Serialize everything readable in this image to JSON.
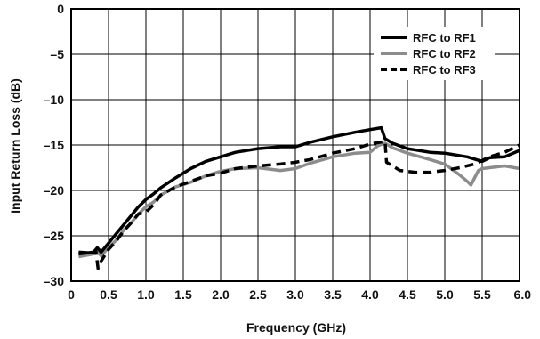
{
  "chart_data": {
    "type": "line",
    "xlabel": "Frequency (GHz)",
    "ylabel": "Input Return Loss (dB)",
    "xlim": [
      0,
      6.0
    ],
    "ylim": [
      -30,
      0
    ],
    "xticks": [
      "0",
      "0.5",
      "1.0",
      "1.5",
      "2.0",
      "2.5",
      "3.0",
      "3.5",
      "4.0",
      "4.5",
      "5.0",
      "5.5",
      "6.0"
    ],
    "yticks": [
      "0",
      "–5",
      "–10",
      "–15",
      "–20",
      "–25",
      "–30"
    ],
    "grid": true,
    "legend_position": "top-right",
    "series": [
      {
        "name": "RFC to RF1",
        "color": "#000000",
        "style": "solid",
        "x": [
          0.1,
          0.3,
          0.35,
          0.4,
          0.5,
          0.6,
          0.7,
          0.8,
          0.9,
          1.0,
          1.1,
          1.2,
          1.4,
          1.6,
          1.8,
          2.0,
          2.2,
          2.5,
          2.8,
          3.0,
          3.2,
          3.5,
          3.8,
          4.0,
          4.15,
          4.2,
          4.3,
          4.5,
          4.8,
          5.0,
          5.3,
          5.5,
          5.6,
          5.8,
          6.0
        ],
        "y": [
          -27.0,
          -26.8,
          -26.3,
          -26.8,
          -25.8,
          -24.8,
          -23.8,
          -22.8,
          -21.8,
          -21.0,
          -20.4,
          -19.7,
          -18.6,
          -17.6,
          -16.8,
          -16.3,
          -15.8,
          -15.4,
          -15.2,
          -15.2,
          -14.7,
          -14.1,
          -13.6,
          -13.3,
          -13.1,
          -14.3,
          -14.8,
          -15.4,
          -15.8,
          -15.9,
          -16.3,
          -16.8,
          -16.4,
          -16.3,
          -15.6
        ]
      },
      {
        "name": "RFC to RF2",
        "color": "#8c8c8c",
        "style": "solid",
        "x": [
          0.1,
          0.3,
          0.35,
          0.4,
          0.5,
          0.6,
          0.7,
          0.8,
          0.9,
          1.0,
          1.1,
          1.2,
          1.4,
          1.6,
          1.8,
          2.0,
          2.2,
          2.5,
          2.8,
          3.0,
          3.2,
          3.5,
          3.8,
          4.0,
          4.1,
          4.2,
          4.3,
          4.5,
          4.8,
          5.0,
          5.2,
          5.3,
          5.35,
          5.4,
          5.45,
          5.5,
          5.8,
          6.0
        ],
        "y": [
          -27.3,
          -27.0,
          -26.8,
          -27.2,
          -26.3,
          -25.5,
          -24.4,
          -23.6,
          -22.6,
          -21.8,
          -21.3,
          -20.5,
          -19.6,
          -19.1,
          -18.4,
          -17.9,
          -17.6,
          -17.5,
          -17.8,
          -17.6,
          -17.0,
          -16.3,
          -15.9,
          -15.8,
          -15.1,
          -14.8,
          -15.3,
          -15.9,
          -16.6,
          -17.1,
          -18.3,
          -19.0,
          -19.4,
          -18.6,
          -17.8,
          -17.6,
          -17.3,
          -17.6
        ]
      },
      {
        "name": "RFC to RF3",
        "color": "#000000",
        "style": "dashed",
        "x": [
          0.1,
          0.3,
          0.33,
          0.36,
          0.4,
          0.5,
          0.6,
          0.7,
          0.8,
          0.9,
          1.0,
          1.1,
          1.2,
          1.4,
          1.6,
          1.8,
          2.0,
          2.2,
          2.5,
          2.8,
          3.0,
          3.2,
          3.5,
          3.8,
          4.0,
          4.2,
          4.22,
          4.4,
          4.6,
          4.8,
          5.0,
          5.2,
          5.4,
          5.6,
          5.8,
          6.0
        ],
        "y": [
          -26.8,
          -26.9,
          -26.6,
          -28.6,
          -27.8,
          -26.5,
          -25.6,
          -24.5,
          -23.6,
          -22.6,
          -22.4,
          -21.6,
          -20.5,
          -19.6,
          -19.0,
          -18.4,
          -18.1,
          -17.6,
          -17.3,
          -17.1,
          -16.9,
          -16.6,
          -15.9,
          -15.4,
          -14.9,
          -14.6,
          -16.9,
          -17.8,
          -18.0,
          -18.0,
          -17.8,
          -17.5,
          -17.1,
          -16.3,
          -15.8,
          -15.0
        ]
      }
    ]
  }
}
